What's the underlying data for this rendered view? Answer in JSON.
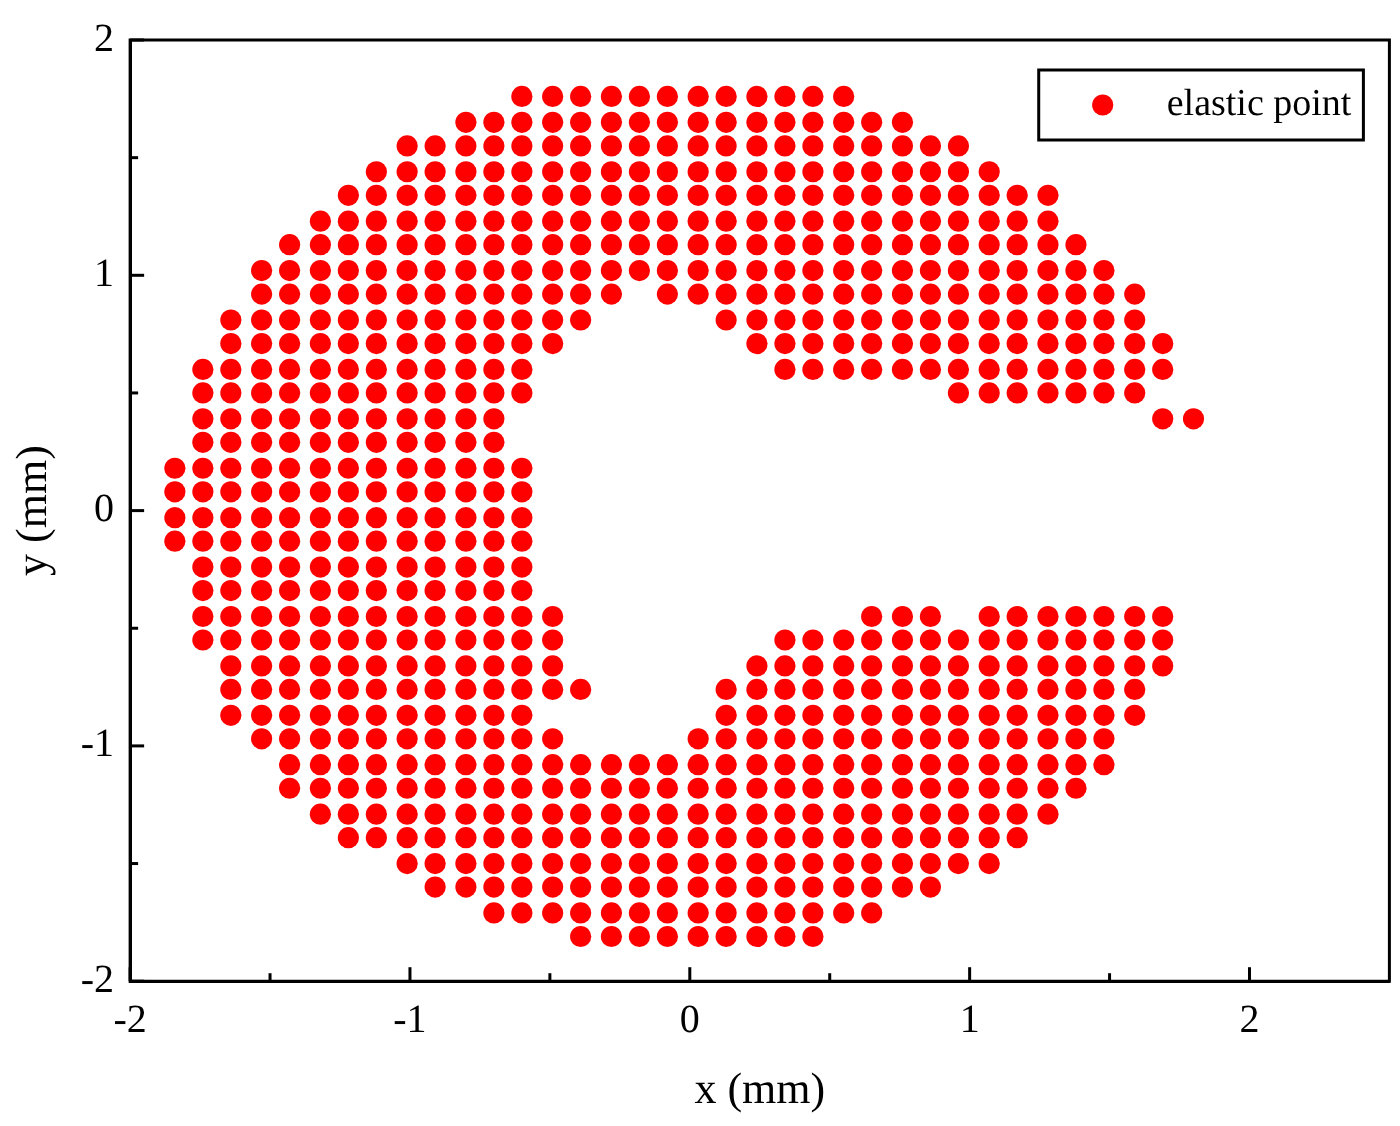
{
  "chart_data": {
    "type": "scatter",
    "xlabel": "x (mm)",
    "ylabel": "y (mm)",
    "xlim": [
      -2,
      2.5
    ],
    "xticks": [
      -2,
      {
        "value": -1.5,
        "label": null
      },
      -1,
      {
        "value": -0.5,
        "label": null
      },
      0,
      {
        "value": 0.5,
        "label": null
      },
      1,
      {
        "value": 1.5,
        "label": null
      },
      2
    ],
    "ylim": [
      -2,
      2
    ],
    "yticks": [
      -2,
      {
        "value": -1.5,
        "label": null
      },
      -1,
      {
        "value": -0.5,
        "label": null
      },
      0,
      {
        "value": 0.5,
        "label": null
      },
      1,
      {
        "value": 1.5,
        "label": null
      },
      2
    ],
    "grid": false,
    "legend": "top right",
    "marker": "circle",
    "series": [
      {
        "name": "elastic point",
        "color": "#ff0000",
        "x": [
          -0.6,
          -0.49,
          -0.39,
          -0.28,
          -0.18,
          -0.08,
          0.03,
          0.13,
          0.24,
          0.34,
          0.44,
          0.55,
          -0.8,
          -0.7,
          -0.6,
          -0.49,
          -0.39,
          -0.28,
          -0.18,
          -0.08,
          0.03,
          0.13,
          0.24,
          0.34,
          0.44,
          0.55,
          0.65,
          0.76,
          -1.01,
          -0.91,
          -0.8,
          -0.7,
          -0.6,
          -0.49,
          -0.39,
          -0.28,
          -0.18,
          -0.08,
          0.03,
          0.13,
          0.24,
          0.34,
          0.44,
          0.55,
          0.65,
          0.76,
          0.86,
          0.96,
          -1.12,
          -1.01,
          -0.91,
          -0.8,
          -0.7,
          -0.6,
          -0.49,
          -0.39,
          -0.28,
          -0.18,
          -0.08,
          0.03,
          0.13,
          0.24,
          0.34,
          0.44,
          0.55,
          0.65,
          0.76,
          0.86,
          0.96,
          1.07,
          -1.22,
          -1.12,
          -1.01,
          -0.91,
          -0.8,
          -0.7,
          -0.6,
          -0.49,
          -0.39,
          -0.28,
          -0.18,
          -0.08,
          0.03,
          0.13,
          0.24,
          0.34,
          0.44,
          0.55,
          0.65,
          0.76,
          0.86,
          0.96,
          1.07,
          1.17,
          1.28,
          -1.32,
          -1.22,
          -1.12,
          -1.01,
          -0.91,
          -0.8,
          -0.7,
          -0.6,
          -0.49,
          -0.39,
          -0.28,
          -0.18,
          -0.08,
          0.03,
          0.13,
          0.24,
          0.34,
          0.44,
          0.55,
          0.65,
          0.76,
          0.86,
          0.96,
          1.07,
          1.17,
          1.28,
          -1.43,
          -1.32,
          -1.22,
          -1.12,
          -1.01,
          -0.91,
          -0.8,
          -0.7,
          -0.6,
          -0.49,
          -0.39,
          -0.28,
          -0.18,
          -0.08,
          0.03,
          0.13,
          0.24,
          0.34,
          0.44,
          0.55,
          0.65,
          0.76,
          0.86,
          0.96,
          1.07,
          1.17,
          1.28,
          1.38,
          -1.53,
          -1.43,
          -1.32,
          -1.22,
          -1.12,
          -1.01,
          -0.91,
          -0.8,
          -0.7,
          -0.6,
          -0.49,
          -0.39,
          -0.28,
          -0.18,
          -0.08,
          0.03,
          0.13,
          0.24,
          0.34,
          0.44,
          0.55,
          0.65,
          0.76,
          0.86,
          0.96,
          1.07,
          1.17,
          1.28,
          1.38,
          1.48,
          -1.53,
          -1.43,
          -1.32,
          -1.22,
          -1.12,
          -1.01,
          -0.91,
          -0.8,
          -0.7,
          -0.6,
          -0.49,
          -0.39,
          -0.28,
          -0.08,
          0.03,
          0.13,
          0.24,
          0.34,
          0.44,
          0.55,
          0.65,
          0.76,
          0.86,
          0.96,
          1.07,
          1.17,
          1.28,
          1.38,
          1.48,
          1.59,
          -1.64,
          -1.53,
          -1.43,
          -1.32,
          -1.22,
          -1.12,
          -1.01,
          -0.91,
          -0.8,
          -0.7,
          -0.6,
          -0.49,
          -0.39,
          0.13,
          0.24,
          0.34,
          0.44,
          0.55,
          0.65,
          0.76,
          0.86,
          0.96,
          1.07,
          1.17,
          1.28,
          1.38,
          1.48,
          1.59,
          -1.64,
          -1.53,
          -1.43,
          -1.32,
          -1.22,
          -1.12,
          -1.01,
          -0.91,
          -0.8,
          -0.7,
          -0.6,
          -0.49,
          0.24,
          0.34,
          0.44,
          0.55,
          0.65,
          0.76,
          0.86,
          0.96,
          1.07,
          1.17,
          1.28,
          1.38,
          1.48,
          1.59,
          1.69,
          -1.74,
          -1.64,
          -1.53,
          -1.43,
          -1.32,
          -1.22,
          -1.12,
          -1.01,
          -0.91,
          -0.8,
          -0.7,
          -0.6,
          0.34,
          0.44,
          0.55,
          0.65,
          0.76,
          0.86,
          0.96,
          1.07,
          1.17,
          1.28,
          1.38,
          1.48,
          1.59,
          1.69,
          -1.74,
          -1.64,
          -1.53,
          -1.43,
          -1.32,
          -1.22,
          -1.12,
          -1.01,
          -0.91,
          -0.8,
          -0.7,
          -0.6,
          0.96,
          1.07,
          1.17,
          1.28,
          1.38,
          1.48,
          1.59,
          -1.74,
          -1.64,
          -1.53,
          -1.43,
          -1.32,
          -1.22,
          -1.12,
          -1.01,
          -0.91,
          -0.8,
          -0.7,
          1.69,
          1.8,
          -1.74,
          -1.64,
          -1.53,
          -1.43,
          -1.32,
          -1.22,
          -1.12,
          -1.01,
          -0.91,
          -0.8,
          -0.7,
          -1.84,
          -1.74,
          -1.64,
          -1.53,
          -1.43,
          -1.32,
          -1.22,
          -1.12,
          -1.01,
          -0.91,
          -0.8,
          -0.7,
          -0.6,
          -1.84,
          -1.74,
          -1.64,
          -1.53,
          -1.43,
          -1.32,
          -1.22,
          -1.12,
          -1.01,
          -0.91,
          -0.8,
          -0.7,
          -0.6,
          -1.84,
          -1.74,
          -1.64,
          -1.53,
          -1.43,
          -1.32,
          -1.22,
          -1.12,
          -1.01,
          -0.91,
          -0.8,
          -0.7,
          -0.6,
          -1.84,
          -1.74,
          -1.64,
          -1.53,
          -1.43,
          -1.32,
          -1.22,
          -1.12,
          -1.01,
          -0.91,
          -0.8,
          -0.7,
          -0.6,
          -1.74,
          -1.64,
          -1.53,
          -1.43,
          -1.32,
          -1.22,
          -1.12,
          -1.01,
          -0.91,
          -0.8,
          -0.7,
          -0.6,
          -1.74,
          -1.64,
          -1.53,
          -1.43,
          -1.32,
          -1.22,
          -1.12,
          -1.01,
          -0.91,
          -0.8,
          -0.7,
          -0.6,
          -1.74,
          -1.64,
          -1.53,
          -1.43,
          -1.32,
          -1.22,
          -1.12,
          -1.01,
          -0.91,
          -0.8,
          -0.7,
          -0.6,
          -0.49,
          0.65,
          0.76,
          0.86,
          1.07,
          1.17,
          1.28,
          1.38,
          1.48,
          1.59,
          1.69,
          -1.74,
          -1.64,
          -1.53,
          -1.43,
          -1.32,
          -1.22,
          -1.12,
          -1.01,
          -0.91,
          -0.8,
          -0.7,
          -0.6,
          -0.49,
          0.34,
          0.44,
          0.55,
          0.65,
          0.76,
          0.86,
          0.96,
          1.07,
          1.17,
          1.28,
          1.38,
          1.48,
          1.59,
          1.69,
          -1.64,
          -1.53,
          -1.43,
          -1.32,
          -1.22,
          -1.12,
          -1.01,
          -0.91,
          -0.8,
          -0.7,
          -0.6,
          -0.49,
          0.24,
          0.34,
          0.44,
          0.55,
          0.65,
          0.76,
          0.86,
          0.96,
          1.07,
          1.17,
          1.28,
          1.38,
          1.48,
          1.59,
          1.69,
          -1.64,
          -1.53,
          -1.43,
          -1.32,
          -1.22,
          -1.12,
          -1.01,
          -0.91,
          -0.8,
          -0.7,
          -0.6,
          -0.49,
          -0.39,
          0.13,
          0.24,
          0.34,
          0.44,
          0.55,
          0.65,
          0.76,
          0.86,
          0.96,
          1.07,
          1.17,
          1.28,
          1.38,
          1.48,
          1.59,
          -1.64,
          -1.53,
          -1.43,
          -1.32,
          -1.22,
          -1.12,
          -1.01,
          -0.91,
          -0.8,
          -0.7,
          -0.6,
          0.13,
          0.24,
          0.34,
          0.44,
          0.55,
          0.65,
          0.76,
          0.86,
          0.96,
          1.07,
          1.17,
          1.28,
          1.38,
          1.48,
          1.59,
          -1.53,
          -1.43,
          -1.32,
          -1.22,
          -1.12,
          -1.01,
          -0.91,
          -0.8,
          -0.7,
          -0.6,
          -0.49,
          0.03,
          0.13,
          0.24,
          0.34,
          0.44,
          0.55,
          0.65,
          0.76,
          0.86,
          0.96,
          1.07,
          1.17,
          1.28,
          1.38,
          1.48,
          -1.43,
          -1.32,
          -1.22,
          -1.12,
          -1.01,
          -0.91,
          -0.8,
          -0.7,
          -0.6,
          -0.49,
          -0.39,
          -0.28,
          -0.18,
          -0.08,
          0.03,
          0.13,
          0.24,
          0.34,
          0.44,
          0.55,
          0.65,
          0.76,
          0.86,
          0.96,
          1.07,
          1.17,
          1.28,
          1.38,
          1.48,
          -1.43,
          -1.32,
          -1.22,
          -1.12,
          -1.01,
          -0.91,
          -0.8,
          -0.7,
          -0.6,
          -0.49,
          -0.39,
          -0.28,
          -0.18,
          -0.08,
          0.03,
          0.13,
          0.24,
          0.34,
          0.44,
          0.55,
          0.65,
          0.76,
          0.86,
          0.96,
          1.07,
          1.17,
          1.28,
          1.38,
          -1.32,
          -1.22,
          -1.12,
          -1.01,
          -0.91,
          -0.8,
          -0.7,
          -0.6,
          -0.49,
          -0.39,
          -0.28,
          -0.18,
          -0.08,
          0.03,
          0.13,
          0.24,
          0.34,
          0.44,
          0.55,
          0.65,
          0.76,
          0.86,
          0.96,
          1.07,
          1.17,
          1.28,
          -1.22,
          -1.12,
          -1.01,
          -0.91,
          -0.8,
          -0.7,
          -0.6,
          -0.49,
          -0.39,
          -0.28,
          -0.18,
          -0.08,
          0.03,
          0.13,
          0.24,
          0.34,
          0.44,
          0.55,
          0.65,
          0.76,
          0.86,
          0.96,
          1.07,
          1.17,
          -1.01,
          -0.91,
          -0.8,
          -0.7,
          -0.6,
          -0.49,
          -0.39,
          -0.28,
          -0.18,
          -0.08,
          0.03,
          0.13,
          0.24,
          0.34,
          0.44,
          0.55,
          0.65,
          0.76,
          0.86,
          0.96,
          1.07,
          -0.91,
          -0.8,
          -0.7,
          -0.6,
          -0.49,
          -0.39,
          -0.28,
          -0.18,
          -0.08,
          0.03,
          0.13,
          0.24,
          0.34,
          0.44,
          0.55,
          0.65,
          0.76,
          0.86,
          -0.7,
          -0.6,
          -0.49,
          -0.39,
          -0.28,
          -0.18,
          -0.08,
          0.03,
          0.13,
          0.24,
          0.34,
          0.44,
          0.55,
          0.65,
          -0.39,
          -0.28,
          -0.18,
          -0.08,
          0.03,
          0.13,
          0.24,
          0.34,
          0.44
        ],
        "values": [
          1.76,
          1.76,
          1.76,
          1.76,
          1.76,
          1.76,
          1.76,
          1.76,
          1.76,
          1.76,
          1.76,
          1.76,
          1.65,
          1.65,
          1.65,
          1.65,
          1.65,
          1.65,
          1.65,
          1.65,
          1.65,
          1.65,
          1.65,
          1.65,
          1.65,
          1.65,
          1.65,
          1.65,
          1.55,
          1.55,
          1.55,
          1.55,
          1.55,
          1.55,
          1.55,
          1.55,
          1.55,
          1.55,
          1.55,
          1.55,
          1.55,
          1.55,
          1.55,
          1.55,
          1.55,
          1.55,
          1.55,
          1.55,
          1.44,
          1.44,
          1.44,
          1.44,
          1.44,
          1.44,
          1.44,
          1.44,
          1.44,
          1.44,
          1.44,
          1.44,
          1.44,
          1.44,
          1.44,
          1.44,
          1.44,
          1.44,
          1.44,
          1.44,
          1.44,
          1.44,
          1.34,
          1.34,
          1.34,
          1.34,
          1.34,
          1.34,
          1.34,
          1.34,
          1.34,
          1.34,
          1.34,
          1.34,
          1.34,
          1.34,
          1.34,
          1.34,
          1.34,
          1.34,
          1.34,
          1.34,
          1.34,
          1.34,
          1.34,
          1.34,
          1.34,
          1.23,
          1.23,
          1.23,
          1.23,
          1.23,
          1.23,
          1.23,
          1.23,
          1.23,
          1.23,
          1.23,
          1.23,
          1.23,
          1.23,
          1.23,
          1.23,
          1.23,
          1.23,
          1.23,
          1.23,
          1.23,
          1.23,
          1.23,
          1.23,
          1.23,
          1.23,
          1.13,
          1.13,
          1.13,
          1.13,
          1.13,
          1.13,
          1.13,
          1.13,
          1.13,
          1.13,
          1.13,
          1.13,
          1.13,
          1.13,
          1.13,
          1.13,
          1.13,
          1.13,
          1.13,
          1.13,
          1.13,
          1.13,
          1.13,
          1.13,
          1.13,
          1.13,
          1.13,
          1.13,
          1.02,
          1.02,
          1.02,
          1.02,
          1.02,
          1.02,
          1.02,
          1.02,
          1.02,
          1.02,
          1.02,
          1.02,
          1.02,
          1.02,
          1.02,
          1.02,
          1.02,
          1.02,
          1.02,
          1.02,
          1.02,
          1.02,
          1.02,
          1.02,
          1.02,
          1.02,
          1.02,
          1.02,
          1.02,
          1.02,
          0.92,
          0.92,
          0.92,
          0.92,
          0.92,
          0.92,
          0.92,
          0.92,
          0.92,
          0.92,
          0.92,
          0.92,
          0.92,
          0.92,
          0.92,
          0.92,
          0.92,
          0.92,
          0.92,
          0.92,
          0.92,
          0.92,
          0.92,
          0.92,
          0.92,
          0.92,
          0.92,
          0.92,
          0.92,
          0.92,
          0.81,
          0.81,
          0.81,
          0.81,
          0.81,
          0.81,
          0.81,
          0.81,
          0.81,
          0.81,
          0.81,
          0.81,
          0.81,
          0.81,
          0.81,
          0.81,
          0.81,
          0.81,
          0.81,
          0.81,
          0.81,
          0.81,
          0.81,
          0.81,
          0.81,
          0.81,
          0.81,
          0.81,
          0.71,
          0.71,
          0.71,
          0.71,
          0.71,
          0.71,
          0.71,
          0.71,
          0.71,
          0.71,
          0.71,
          0.71,
          0.71,
          0.71,
          0.71,
          0.71,
          0.71,
          0.71,
          0.71,
          0.71,
          0.71,
          0.71,
          0.71,
          0.71,
          0.71,
          0.71,
          0.71,
          0.6,
          0.6,
          0.6,
          0.6,
          0.6,
          0.6,
          0.6,
          0.6,
          0.6,
          0.6,
          0.6,
          0.6,
          0.6,
          0.6,
          0.6,
          0.6,
          0.6,
          0.6,
          0.6,
          0.6,
          0.6,
          0.6,
          0.6,
          0.6,
          0.6,
          0.6,
          0.5,
          0.5,
          0.5,
          0.5,
          0.5,
          0.5,
          0.5,
          0.5,
          0.5,
          0.5,
          0.5,
          0.5,
          0.5,
          0.5,
          0.5,
          0.5,
          0.5,
          0.5,
          0.5,
          0.39,
          0.39,
          0.39,
          0.39,
          0.39,
          0.39,
          0.39,
          0.39,
          0.39,
          0.39,
          0.39,
          0.39,
          0.39,
          0.29,
          0.29,
          0.29,
          0.29,
          0.29,
          0.29,
          0.29,
          0.29,
          0.29,
          0.29,
          0.29,
          0.18,
          0.18,
          0.18,
          0.18,
          0.18,
          0.18,
          0.18,
          0.18,
          0.18,
          0.18,
          0.18,
          0.18,
          0.18,
          0.08,
          0.08,
          0.08,
          0.08,
          0.08,
          0.08,
          0.08,
          0.08,
          0.08,
          0.08,
          0.08,
          0.08,
          0.08,
          -0.03,
          -0.03,
          -0.03,
          -0.03,
          -0.03,
          -0.03,
          -0.03,
          -0.03,
          -0.03,
          -0.03,
          -0.03,
          -0.03,
          -0.03,
          -0.13,
          -0.13,
          -0.13,
          -0.13,
          -0.13,
          -0.13,
          -0.13,
          -0.13,
          -0.13,
          -0.13,
          -0.13,
          -0.13,
          -0.13,
          -0.24,
          -0.24,
          -0.24,
          -0.24,
          -0.24,
          -0.24,
          -0.24,
          -0.24,
          -0.24,
          -0.24,
          -0.24,
          -0.24,
          -0.34,
          -0.34,
          -0.34,
          -0.34,
          -0.34,
          -0.34,
          -0.34,
          -0.34,
          -0.34,
          -0.34,
          -0.34,
          -0.34,
          -0.45,
          -0.45,
          -0.45,
          -0.45,
          -0.45,
          -0.45,
          -0.45,
          -0.45,
          -0.45,
          -0.45,
          -0.45,
          -0.45,
          -0.45,
          -0.45,
          -0.45,
          -0.45,
          -0.45,
          -0.45,
          -0.45,
          -0.45,
          -0.45,
          -0.45,
          -0.45,
          -0.55,
          -0.55,
          -0.55,
          -0.55,
          -0.55,
          -0.55,
          -0.55,
          -0.55,
          -0.55,
          -0.55,
          -0.55,
          -0.55,
          -0.55,
          -0.55,
          -0.55,
          -0.55,
          -0.55,
          -0.55,
          -0.55,
          -0.55,
          -0.55,
          -0.55,
          -0.55,
          -0.55,
          -0.55,
          -0.55,
          -0.55,
          -0.66,
          -0.66,
          -0.66,
          -0.66,
          -0.66,
          -0.66,
          -0.66,
          -0.66,
          -0.66,
          -0.66,
          -0.66,
          -0.66,
          -0.66,
          -0.66,
          -0.66,
          -0.66,
          -0.66,
          -0.66,
          -0.66,
          -0.66,
          -0.66,
          -0.66,
          -0.66,
          -0.66,
          -0.66,
          -0.66,
          -0.66,
          -0.76,
          -0.76,
          -0.76,
          -0.76,
          -0.76,
          -0.76,
          -0.76,
          -0.76,
          -0.76,
          -0.76,
          -0.76,
          -0.76,
          -0.76,
          -0.76,
          -0.76,
          -0.76,
          -0.76,
          -0.76,
          -0.76,
          -0.76,
          -0.76,
          -0.76,
          -0.76,
          -0.76,
          -0.76,
          -0.76,
          -0.76,
          -0.76,
          -0.87,
          -0.87,
          -0.87,
          -0.87,
          -0.87,
          -0.87,
          -0.87,
          -0.87,
          -0.87,
          -0.87,
          -0.87,
          -0.87,
          -0.87,
          -0.87,
          -0.87,
          -0.87,
          -0.87,
          -0.87,
          -0.87,
          -0.87,
          -0.87,
          -0.87,
          -0.87,
          -0.87,
          -0.87,
          -0.87,
          -0.97,
          -0.97,
          -0.97,
          -0.97,
          -0.97,
          -0.97,
          -0.97,
          -0.97,
          -0.97,
          -0.97,
          -0.97,
          -0.97,
          -0.97,
          -0.97,
          -0.97,
          -0.97,
          -0.97,
          -0.97,
          -0.97,
          -0.97,
          -0.97,
          -0.97,
          -0.97,
          -0.97,
          -0.97,
          -0.97,
          -1.08,
          -1.08,
          -1.08,
          -1.08,
          -1.08,
          -1.08,
          -1.08,
          -1.08,
          -1.08,
          -1.08,
          -1.08,
          -1.08,
          -1.08,
          -1.08,
          -1.08,
          -1.08,
          -1.08,
          -1.08,
          -1.08,
          -1.08,
          -1.08,
          -1.08,
          -1.08,
          -1.08,
          -1.08,
          -1.08,
          -1.08,
          -1.08,
          -1.08,
          -1.18,
          -1.18,
          -1.18,
          -1.18,
          -1.18,
          -1.18,
          -1.18,
          -1.18,
          -1.18,
          -1.18,
          -1.18,
          -1.18,
          -1.18,
          -1.18,
          -1.18,
          -1.18,
          -1.18,
          -1.18,
          -1.18,
          -1.18,
          -1.18,
          -1.18,
          -1.18,
          -1.18,
          -1.18,
          -1.18,
          -1.18,
          -1.18,
          -1.29,
          -1.29,
          -1.29,
          -1.29,
          -1.29,
          -1.29,
          -1.29,
          -1.29,
          -1.29,
          -1.29,
          -1.29,
          -1.29,
          -1.29,
          -1.29,
          -1.29,
          -1.29,
          -1.29,
          -1.29,
          -1.29,
          -1.29,
          -1.29,
          -1.29,
          -1.29,
          -1.29,
          -1.29,
          -1.29,
          -1.39,
          -1.39,
          -1.39,
          -1.39,
          -1.39,
          -1.39,
          -1.39,
          -1.39,
          -1.39,
          -1.39,
          -1.39,
          -1.39,
          -1.39,
          -1.39,
          -1.39,
          -1.39,
          -1.39,
          -1.39,
          -1.39,
          -1.39,
          -1.39,
          -1.39,
          -1.39,
          -1.39,
          -1.5,
          -1.5,
          -1.5,
          -1.5,
          -1.5,
          -1.5,
          -1.5,
          -1.5,
          -1.5,
          -1.5,
          -1.5,
          -1.5,
          -1.5,
          -1.5,
          -1.5,
          -1.5,
          -1.5,
          -1.5,
          -1.5,
          -1.5,
          -1.5,
          -1.6,
          -1.6,
          -1.6,
          -1.6,
          -1.6,
          -1.6,
          -1.6,
          -1.6,
          -1.6,
          -1.6,
          -1.6,
          -1.6,
          -1.6,
          -1.6,
          -1.6,
          -1.6,
          -1.6,
          -1.6,
          -1.71,
          -1.71,
          -1.71,
          -1.71,
          -1.71,
          -1.71,
          -1.71,
          -1.71,
          -1.71,
          -1.71,
          -1.71,
          -1.71,
          -1.71,
          -1.71,
          -1.81,
          -1.81,
          -1.81,
          -1.81,
          -1.81,
          -1.81,
          -1.81,
          -1.81,
          -1.81
        ]
      }
    ]
  }
}
